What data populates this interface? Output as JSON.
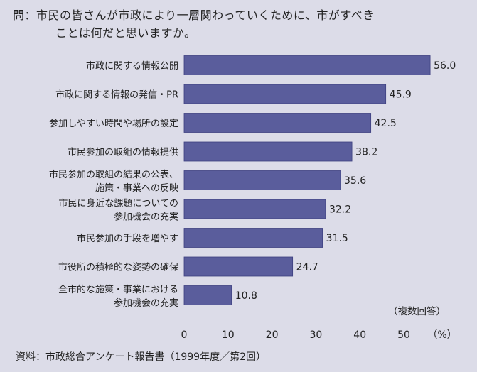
{
  "question": {
    "line1": "問：市民の皆さんが市政により一層関わっていくために、市がすべき",
    "line2": "ことは何だと思いますか。"
  },
  "note": "（複数回答）",
  "source": "資料：市政総合アンケート報告書（1999年度／第2回）",
  "colors": {
    "bar": "#5a5d9c",
    "bar_edge": "#3e4080",
    "background": "#dcdce8"
  },
  "chart_data": {
    "type": "bar",
    "orientation": "horizontal",
    "title": "",
    "xlabel": "（%）",
    "ylabel": "",
    "xlim": [
      0,
      60
    ],
    "xticks": [
      0,
      10,
      20,
      30,
      40,
      50
    ],
    "grid": false,
    "categories": [
      [
        "市政に関する情報公開"
      ],
      [
        "市政に関する情報の発信・PR"
      ],
      [
        "参加しやすい時間や場所の設定"
      ],
      [
        "市民参加の取組の情報提供"
      ],
      [
        "市民参加の取組の結果の公表、",
        "施策・事業への反映"
      ],
      [
        "市民に身近な課題についての",
        "参加機会の充実"
      ],
      [
        "市民参加の手段を増やす"
      ],
      [
        "市役所の積極的な姿勢の確保"
      ],
      [
        "全市的な施策・事業における",
        "参加機会の充実"
      ]
    ],
    "values": [
      56.0,
      45.9,
      42.5,
      38.2,
      35.6,
      32.2,
      31.5,
      24.7,
      10.8
    ],
    "value_labels": [
      "56.0",
      "45.9",
      "42.5",
      "38.2",
      "35.6",
      "32.2",
      "31.5",
      "24.7",
      "10.8"
    ]
  }
}
